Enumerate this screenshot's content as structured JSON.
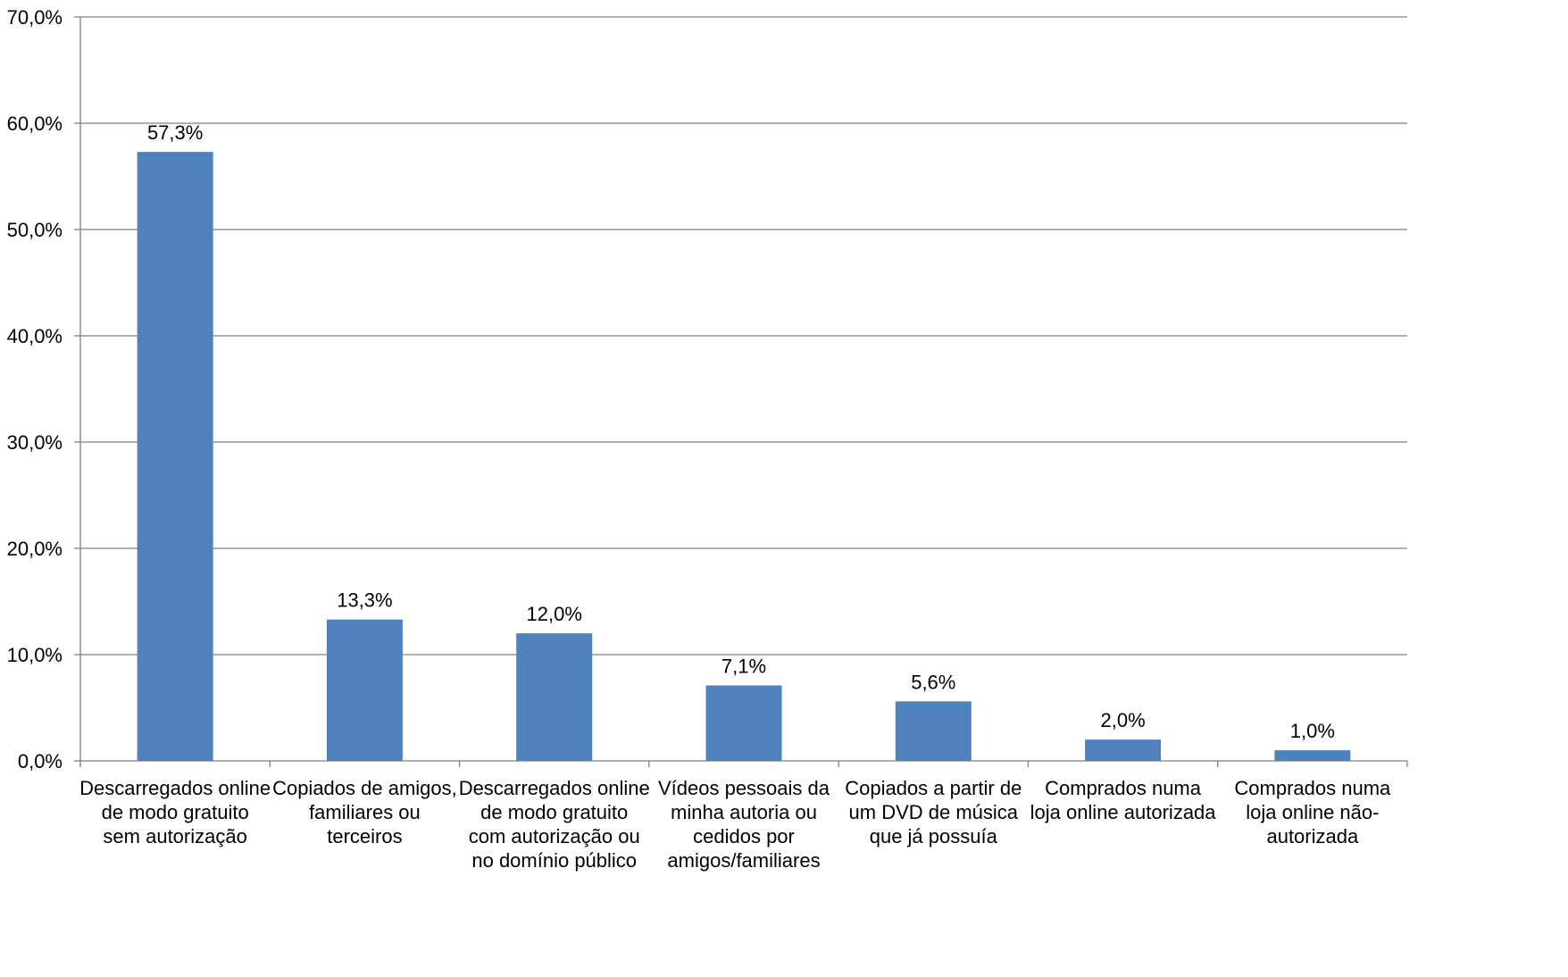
{
  "chart_data": {
    "type": "bar",
    "categories": [
      [
        "Descarregados online",
        "de modo gratuito",
        "sem autorização"
      ],
      [
        "Copiados de amigos,",
        "familiares ou",
        "terceiros"
      ],
      [
        "Descarregados online",
        "de modo gratuito",
        "com autorização ou",
        "no domínio público"
      ],
      [
        "Vídeos pessoais da",
        "minha autoria ou",
        "cedidos por",
        "amigos/familiares"
      ],
      [
        "Copiados a partir de",
        "um DVD de música",
        "que já possuía"
      ],
      [
        "Comprados numa",
        "loja online autorizada"
      ],
      [
        "Comprados numa",
        "loja online não-",
        "autorizada"
      ]
    ],
    "values": [
      57.3,
      13.3,
      12.0,
      7.1,
      5.6,
      2.0,
      1.0
    ],
    "data_labels": [
      "57,3%",
      "13,3%",
      "12,0%",
      "7,1%",
      "5,6%",
      "2,0%",
      "1,0%"
    ],
    "ylim": [
      0,
      70
    ],
    "yticks": [
      0,
      10,
      20,
      30,
      40,
      50,
      60,
      70
    ],
    "ytick_labels": [
      "0,0%",
      "10,0%",
      "20,0%",
      "30,0%",
      "40,0%",
      "50,0%",
      "60,0%",
      "70,0%"
    ],
    "grid": true,
    "legend": "none",
    "bar_color": "#4F81BD",
    "grid_color": "#808080"
  }
}
